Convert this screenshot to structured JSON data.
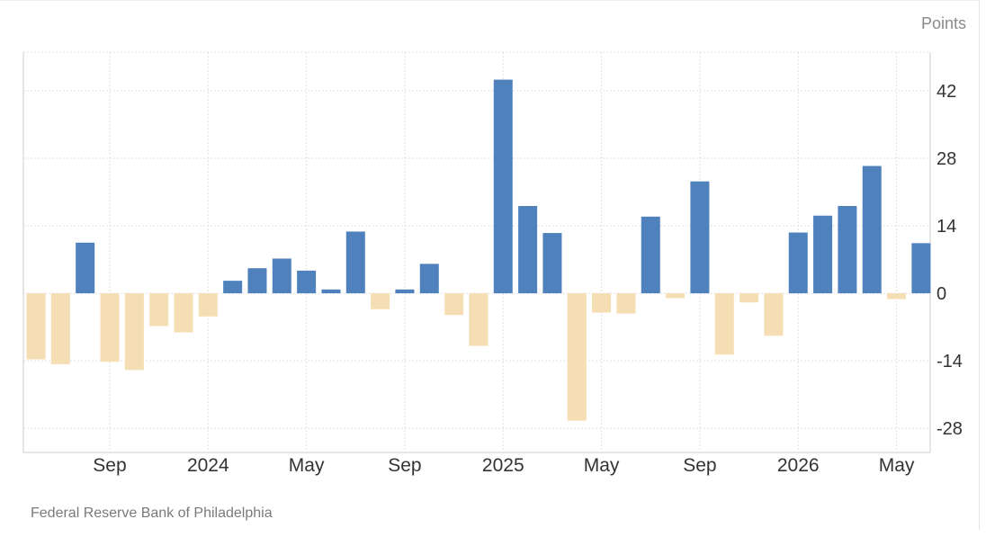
{
  "unit_label": "Points",
  "source": "Federal Reserve Bank of Philadelphia",
  "colors": {
    "positive": "#4f81bd",
    "negative": "#f5deb3",
    "grid": "#e0e0e0",
    "axis": "#cccccc"
  },
  "chart_data": {
    "type": "bar",
    "title": "",
    "ylabel": "Points",
    "ylim": [
      -33,
      50
    ],
    "yticks": [
      -28,
      -14,
      0,
      14,
      28,
      42
    ],
    "grid": true,
    "categories": [
      "2023-06",
      "2023-07",
      "2023-08",
      "2023-09",
      "2023-10",
      "2023-11",
      "2023-12",
      "2024-01",
      "2024-02",
      "2024-03",
      "2024-04",
      "2024-05",
      "2024-06",
      "2024-07",
      "2024-08",
      "2024-09",
      "2024-10",
      "2024-11",
      "2024-12",
      "2025-01",
      "2025-02",
      "2025-03",
      "2025-04",
      "2025-05",
      "2025-06",
      "2025-07",
      "2025-08",
      "2025-09",
      "2025-10",
      "2025-11",
      "2025-12",
      "2026-01",
      "2026-02",
      "2026-03",
      "2026-04",
      "2026-05",
      "2026-06"
    ],
    "values": [
      -13.7,
      -14.7,
      10.5,
      -14.2,
      -15.9,
      -6.8,
      -8.1,
      -4.8,
      2.6,
      5.2,
      7.2,
      4.7,
      0.8,
      12.8,
      -3.3,
      0.8,
      6.1,
      -4.5,
      -10.9,
      44.3,
      18.1,
      12.5,
      -26.4,
      -4.0,
      -4.2,
      15.9,
      -1.0,
      23.2,
      -12.7,
      -1.9,
      -8.8,
      12.6,
      16.1,
      18.1,
      26.4,
      -1.2,
      10.4
    ],
    "xtick_labels": [
      {
        "label": "Sep",
        "category": "2023-09"
      },
      {
        "label": "2024",
        "category": "2024-01"
      },
      {
        "label": "May",
        "category": "2024-05"
      },
      {
        "label": "Sep",
        "category": "2024-09"
      },
      {
        "label": "2025",
        "category": "2025-01"
      },
      {
        "label": "May",
        "category": "2025-05"
      },
      {
        "label": "Sep",
        "category": "2025-09"
      },
      {
        "label": "2026",
        "category": "2026-01"
      },
      {
        "label": "May",
        "category": "2026-05"
      }
    ]
  }
}
